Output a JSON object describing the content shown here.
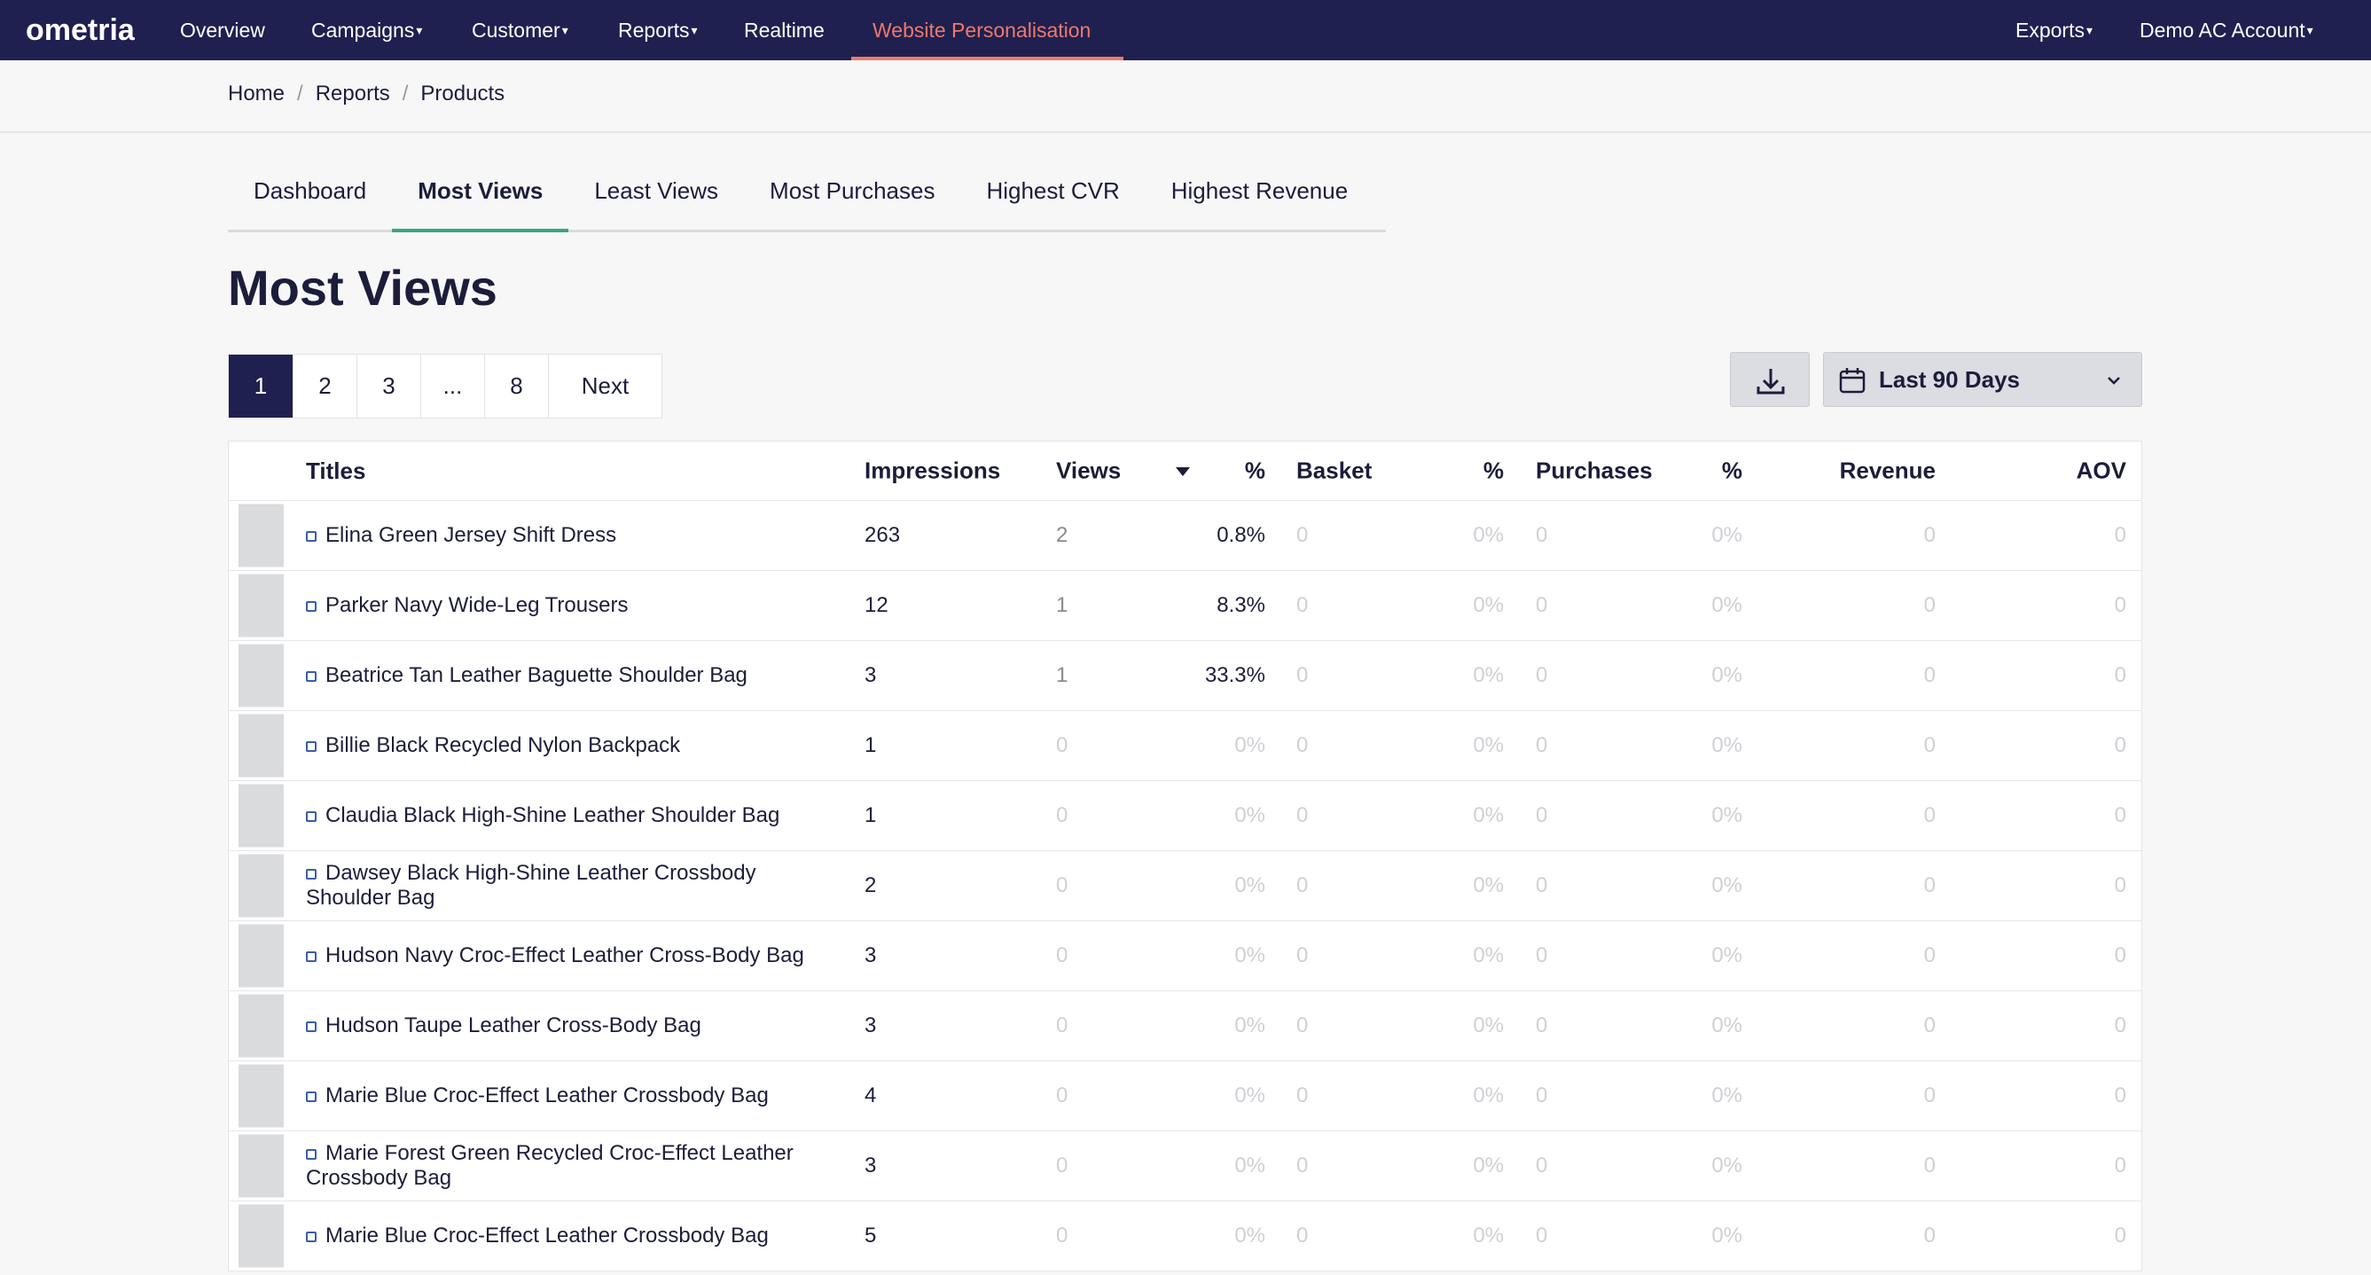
{
  "nav": {
    "logo": "ometria",
    "items": [
      "Overview",
      "Campaigns",
      "Customer",
      "Reports",
      "Realtime",
      "Website Personalisation"
    ],
    "right": [
      "Exports",
      "Demo AC Account"
    ]
  },
  "breadcrumb": [
    "Home",
    "Reports",
    "Products"
  ],
  "tabs": [
    "Dashboard",
    "Most Views",
    "Least Views",
    "Most Purchases",
    "Highest CVR",
    "Highest Revenue"
  ],
  "heading": "Most Views",
  "pagination": [
    "1",
    "2",
    "3",
    "...",
    "8",
    "Next"
  ],
  "date_range": "Last 90 Days",
  "table": {
    "headers": [
      "Titles",
      "Impressions",
      "Views",
      "%",
      "Basket",
      "%",
      "Purchases",
      "%",
      "Revenue",
      "AOV"
    ],
    "rows": [
      [
        "Elina Green Jersey Shift Dress",
        "263",
        "2",
        "0.8%",
        "0",
        "0%",
        "0",
        "0%",
        "0",
        "0"
      ],
      [
        "Parker Navy Wide-Leg Trousers",
        "12",
        "1",
        "8.3%",
        "0",
        "0%",
        "0",
        "0%",
        "0",
        "0"
      ],
      [
        "Beatrice Tan Leather Baguette Shoulder Bag",
        "3",
        "1",
        "33.3%",
        "0",
        "0%",
        "0",
        "0%",
        "0",
        "0"
      ],
      [
        "Billie Black Recycled Nylon Backpack",
        "1",
        "0",
        "0%",
        "0",
        "0%",
        "0",
        "0%",
        "0",
        "0"
      ],
      [
        "Claudia Black High-Shine Leather Shoulder Bag",
        "1",
        "0",
        "0%",
        "0",
        "0%",
        "0",
        "0%",
        "0",
        "0"
      ],
      [
        "Dawsey Black High-Shine Leather Crossbody Shoulder Bag",
        "2",
        "0",
        "0%",
        "0",
        "0%",
        "0",
        "0%",
        "0",
        "0"
      ],
      [
        "Hudson Navy Croc-Effect Leather Cross-Body Bag",
        "3",
        "0",
        "0%",
        "0",
        "0%",
        "0",
        "0%",
        "0",
        "0"
      ],
      [
        "Hudson Taupe Leather Cross-Body Bag",
        "3",
        "0",
        "0%",
        "0",
        "0%",
        "0",
        "0%",
        "0",
        "0"
      ],
      [
        "Marie Blue Croc-Effect Leather Crossbody Bag",
        "4",
        "0",
        "0%",
        "0",
        "0%",
        "0",
        "0%",
        "0",
        "0"
      ],
      [
        "Marie Forest Green Recycled Croc-Effect Leather Crossbody Bag",
        "3",
        "0",
        "0%",
        "0",
        "0%",
        "0",
        "0%",
        "0",
        "0"
      ],
      [
        "Marie Blue Croc-Effect Leather Crossbody Bag",
        "5",
        "0",
        "0%",
        "0",
        "0%",
        "0",
        "0%",
        "0",
        "0"
      ]
    ]
  }
}
